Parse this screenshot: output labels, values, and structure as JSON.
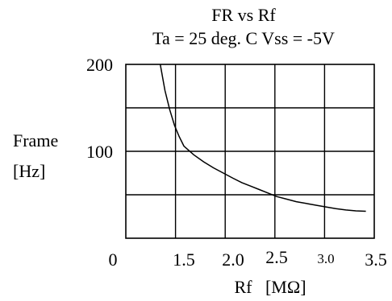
{
  "chart_data": {
    "type": "line",
    "title": "FR  vs  Rf",
    "subtitle": "Ta = 25 deg. C  Vss = -5V",
    "ylabel_line1": "Frame",
    "ylabel_line2": "[Hz]",
    "xlabel": "Rf   [MΩ]",
    "xlim": [
      0,
      3.5
    ],
    "ylim": [
      0,
      200
    ],
    "grid": true,
    "x_ticks": [
      {
        "value": 0,
        "label": "0"
      },
      {
        "value": 1.5,
        "label": "1.5"
      },
      {
        "value": 2.0,
        "label": "2.0"
      },
      {
        "value": 2.5,
        "label": "2.5"
      },
      {
        "value": 3.0,
        "label": "3.0"
      },
      {
        "value": 3.5,
        "label": "3.5"
      }
    ],
    "y_ticks": [
      {
        "value": 100,
        "label": "100"
      },
      {
        "value": 200,
        "label": "200"
      }
    ],
    "series": [
      {
        "color": "#000000",
        "points": [
          [
            1.0,
            200
          ],
          [
            1.1,
            170
          ],
          [
            1.2,
            148
          ],
          [
            1.3,
            130
          ],
          [
            1.4,
            117
          ],
          [
            1.5,
            106
          ],
          [
            1.6,
            96
          ],
          [
            1.7,
            88
          ],
          [
            1.8,
            81
          ],
          [
            1.9,
            75
          ],
          [
            2.0,
            69
          ],
          [
            2.1,
            64
          ],
          [
            2.2,
            60
          ],
          [
            2.3,
            56
          ],
          [
            2.4,
            52
          ],
          [
            2.5,
            48
          ],
          [
            2.6,
            45
          ],
          [
            2.7,
            42
          ],
          [
            2.8,
            40
          ],
          [
            2.9,
            38
          ],
          [
            3.0,
            36
          ],
          [
            3.1,
            34
          ],
          [
            3.2,
            32.5
          ],
          [
            3.3,
            31.5
          ],
          [
            3.4,
            31
          ]
        ]
      }
    ]
  }
}
